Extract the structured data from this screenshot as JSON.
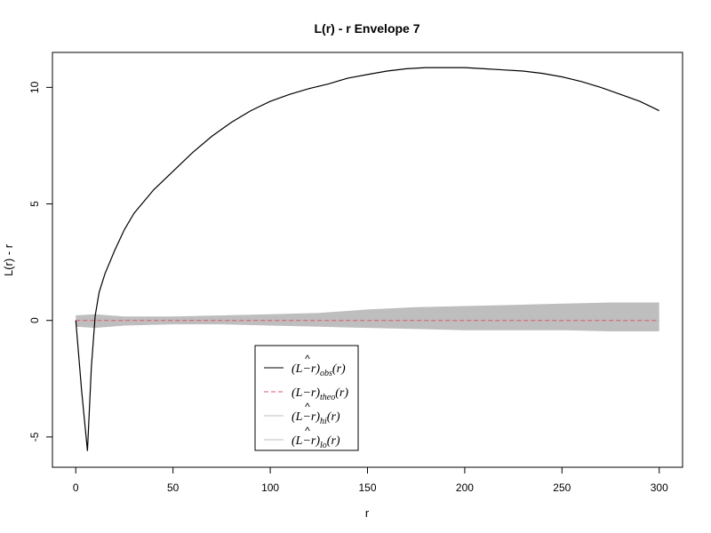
{
  "chart_data": {
    "type": "line",
    "title": "L(r) - r Envelope 7",
    "xlabel": "r",
    "ylabel": "L(r) - r",
    "xlim": [
      -12,
      312
    ],
    "ylim": [
      -6.3,
      11.5
    ],
    "x_ticks": [
      0,
      50,
      100,
      150,
      200,
      250,
      300
    ],
    "x_tick_labels": [
      "0",
      "50",
      "100",
      "150",
      "200",
      "250",
      "300"
    ],
    "y_ticks": [
      -5,
      0,
      5,
      10
    ],
    "y_tick_labels": [
      "-5",
      "0",
      "5",
      "10"
    ],
    "grid": false,
    "legend_position": "bottom-center",
    "legend": [
      {
        "base": "(L",
        "hat": "^",
        "mid": "−r)",
        "sub": "obs",
        "tail": "(r)",
        "color": "#000000",
        "dash": "solid"
      },
      {
        "base": "(L",
        "hat": "",
        "mid": "−r)",
        "sub": "theo",
        "tail": "(r)",
        "color": "#DF536B",
        "dash": "dashed"
      },
      {
        "base": "(L",
        "hat": "^",
        "mid": "−r)",
        "sub": "hi",
        "tail": "(r)",
        "color": "#BEBEBE",
        "dash": "solid"
      },
      {
        "base": "(L",
        "hat": "^",
        "mid": "−r)",
        "sub": "lo",
        "tail": "(r)",
        "color": "#BEBEBE",
        "dash": "solid"
      }
    ],
    "series": [
      {
        "sub": "obs",
        "color": "#000000",
        "x": [
          0,
          3,
          6,
          8,
          10,
          12,
          15,
          20,
          25,
          30,
          40,
          50,
          60,
          70,
          80,
          90,
          100,
          110,
          120,
          130,
          140,
          150,
          160,
          170,
          180,
          190,
          200,
          210,
          220,
          230,
          240,
          250,
          260,
          270,
          280,
          290,
          300
        ],
        "y": [
          0,
          -3.0,
          -5.6,
          -2.0,
          0.2,
          1.2,
          2.0,
          3.0,
          3.9,
          4.6,
          5.6,
          6.4,
          7.2,
          7.9,
          8.5,
          9.0,
          9.4,
          9.7,
          9.95,
          10.15,
          10.4,
          10.55,
          10.7,
          10.8,
          10.85,
          10.85,
          10.85,
          10.8,
          10.75,
          10.7,
          10.6,
          10.45,
          10.25,
          10.0,
          9.7,
          9.4,
          9.0
        ]
      },
      {
        "sub": "theo",
        "color": "#DF536B",
        "x": [
          0,
          300
        ],
        "y": [
          0,
          0
        ]
      },
      {
        "sub": "hi",
        "color": "#BEBEBE",
        "x": [
          0,
          10,
          25,
          50,
          75,
          100,
          125,
          150,
          175,
          200,
          225,
          250,
          275,
          300
        ],
        "y": [
          0.2,
          0.25,
          0.15,
          0.15,
          0.2,
          0.25,
          0.3,
          0.45,
          0.55,
          0.6,
          0.65,
          0.7,
          0.75,
          0.75
        ]
      },
      {
        "sub": "lo",
        "color": "#BEBEBE",
        "x": [
          0,
          10,
          25,
          50,
          75,
          100,
          125,
          150,
          175,
          200,
          225,
          250,
          275,
          300
        ],
        "y": [
          -0.25,
          -0.3,
          -0.2,
          -0.15,
          -0.15,
          -0.2,
          -0.25,
          -0.3,
          -0.35,
          -0.4,
          -0.4,
          -0.4,
          -0.45,
          -0.45
        ]
      }
    ]
  }
}
